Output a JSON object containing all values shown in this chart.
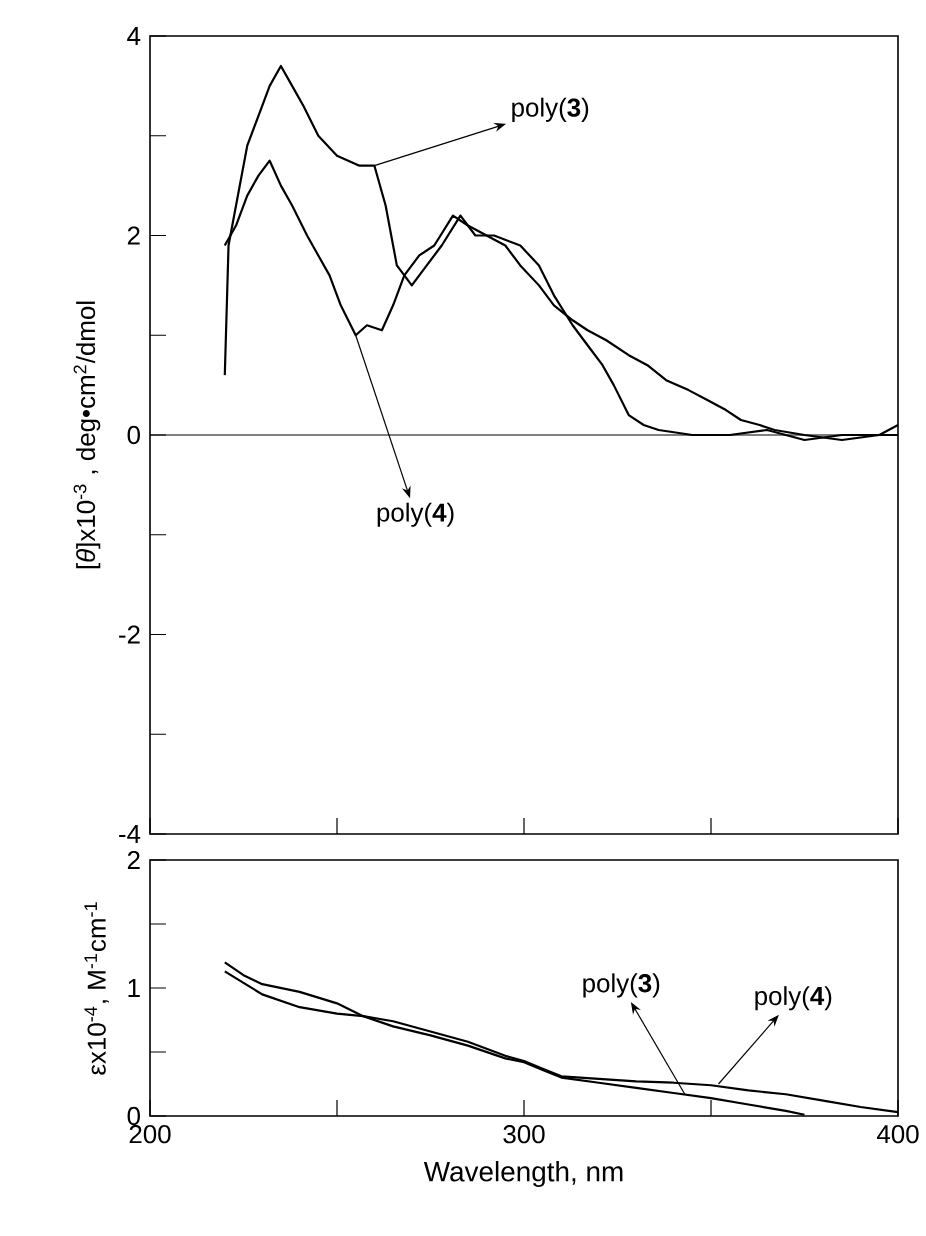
{
  "chart_data": [
    {
      "type": "line",
      "ylabel": "[*θ*]x10$^{-3}$ , deg•cm$^{2}$/dmol",
      "xlim": [
        200,
        400
      ],
      "ylim": [
        -4,
        4
      ],
      "xticks": [
        {
          "value": 200,
          "label": null
        },
        {
          "value": 250,
          "label": null
        },
        {
          "value": 300,
          "label": null
        },
        {
          "value": 350,
          "label": null
        },
        {
          "value": 400,
          "label": null
        }
      ],
      "yticks": [
        -4,
        {
          "value": -3,
          "label": null
        },
        -2,
        {
          "value": -1,
          "label": null
        },
        0,
        {
          "value": 1,
          "label": null
        },
        2,
        {
          "value": 3,
          "label": null
        },
        4
      ],
      "tick_labels": "y",
      "marker": "none",
      "line_style": "solid",
      "grid": false,
      "ref_lines": [
        {
          "axis": "y",
          "value": 0,
          "color": "#000000"
        }
      ],
      "annotations": [
        {
          "text": "poly(**3**)",
          "x": 260,
          "y": 2.7
        },
        {
          "text": "poly(**4**)",
          "x": 255,
          "y": 1.0
        }
      ],
      "series": [
        {
          "color": "#000000",
          "x": [
            220,
            221,
            223,
            226,
            229,
            232,
            235,
            238,
            241,
            245,
            250,
            256,
            260,
            263,
            266,
            270,
            274,
            278,
            283,
            287,
            292,
            299,
            304,
            308,
            313,
            317,
            321,
            324,
            328,
            332,
            336,
            345,
            355,
            365,
            375,
            385,
            395,
            400
          ],
          "values": [
            0.6,
            1.9,
            2.3,
            2.9,
            3.2,
            3.5,
            3.7,
            3.5,
            3.3,
            3.0,
            2.8,
            2.7,
            2.7,
            2.3,
            1.7,
            1.5,
            1.7,
            1.9,
            2.2,
            2.0,
            2.0,
            1.9,
            1.7,
            1.4,
            1.1,
            0.9,
            0.7,
            0.5,
            0.2,
            0.1,
            0.05,
            0.0,
            0.0,
            0.05,
            -0.05,
            0.0,
            0.0,
            0.1
          ]
        },
        {
          "color": "#000000",
          "x": [
            220,
            223,
            226,
            229,
            232,
            235,
            238,
            242,
            245,
            248,
            251,
            255,
            258,
            262,
            265,
            268,
            272,
            276,
            281,
            285,
            290,
            295,
            299,
            304,
            308,
            313,
            317,
            322,
            328,
            333,
            338,
            344,
            349,
            354,
            358,
            363,
            367,
            375,
            385,
            395,
            400
          ],
          "values": [
            1.9,
            2.1,
            2.4,
            2.6,
            2.75,
            2.5,
            2.3,
            2.0,
            1.8,
            1.6,
            1.3,
            1.0,
            1.1,
            1.05,
            1.3,
            1.6,
            1.8,
            1.9,
            2.2,
            2.1,
            2.0,
            1.9,
            1.7,
            1.5,
            1.3,
            1.15,
            1.05,
            0.95,
            0.8,
            0.7,
            0.55,
            0.45,
            0.35,
            0.25,
            0.15,
            0.1,
            0.05,
            0.0,
            -0.05,
            0.0,
            0.0
          ]
        }
      ]
    },
    {
      "type": "line",
      "xlabel": "Wavelength, nm",
      "ylabel": "εx10$^{-4}$, M$^{-1}$cm$^{-1}$",
      "xlim": [
        200,
        400
      ],
      "ylim": [
        0,
        2
      ],
      "xticks": [
        200,
        {
          "value": 250,
          "label": null
        },
        300,
        {
          "value": 350,
          "label": null
        },
        400
      ],
      "yticks": [
        0,
        {
          "value": 0.5,
          "label": null
        },
        1,
        {
          "value": 1.5,
          "label": null
        },
        2
      ],
      "marker": "none",
      "line_style": "solid",
      "grid": false,
      "annotations": [
        {
          "text": "poly(**3**)",
          "x": 343,
          "y": 0.17
        },
        {
          "text": "poly(**4**)",
          "x": 352,
          "y": 0.25
        }
      ],
      "series": [
        {
          "color": "#000000",
          "x": [
            220,
            225,
            230,
            240,
            250,
            257,
            265,
            275,
            285,
            295,
            300,
            305,
            310,
            320,
            330,
            340,
            350,
            360,
            370,
            375
          ],
          "values": [
            1.2,
            1.1,
            1.03,
            0.97,
            0.88,
            0.78,
            0.7,
            0.63,
            0.55,
            0.45,
            0.42,
            0.36,
            0.3,
            0.26,
            0.22,
            0.18,
            0.14,
            0.09,
            0.04,
            0.01
          ]
        },
        {
          "color": "#000000",
          "x": [
            220,
            225,
            230,
            240,
            250,
            257,
            265,
            275,
            285,
            295,
            300,
            305,
            310,
            320,
            330,
            340,
            350,
            360,
            370,
            380,
            390,
            400
          ],
          "values": [
            1.13,
            1.04,
            0.95,
            0.85,
            0.8,
            0.78,
            0.74,
            0.66,
            0.58,
            0.47,
            0.43,
            0.37,
            0.31,
            0.29,
            0.27,
            0.26,
            0.24,
            0.2,
            0.17,
            0.12,
            0.07,
            0.03
          ]
        }
      ]
    }
  ]
}
